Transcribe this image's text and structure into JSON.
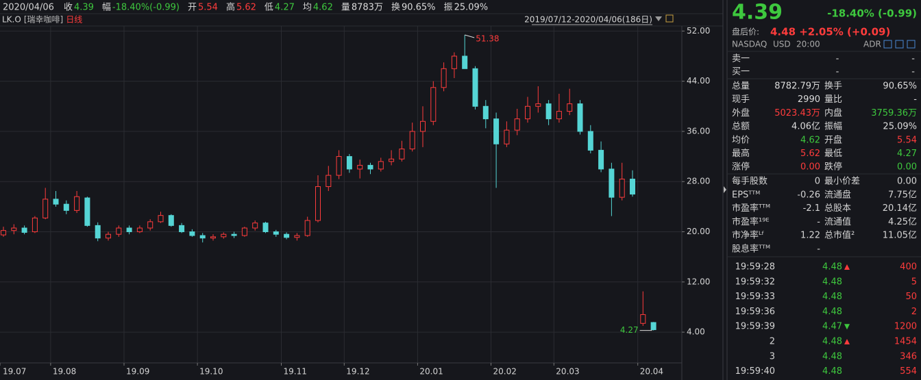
{
  "quote_bar": {
    "date": "2020/04/06",
    "items": [
      {
        "label": "收",
        "value": "4.39",
        "color": "#3ec83e"
      },
      {
        "label": "幅",
        "value": "-18.40%(-0.99)",
        "color": "#3ec83e"
      },
      {
        "label": "开",
        "value": "5.54",
        "color": "#ff3c3c"
      },
      {
        "label": "高",
        "value": "5.62",
        "color": "#ff3c3c"
      },
      {
        "label": "低",
        "value": "4.27",
        "color": "#3ec83e"
      },
      {
        "label": "均",
        "value": "4.62",
        "color": "#3ec83e"
      },
      {
        "label": "量",
        "value": "8783万",
        "color": "#dcdcdc"
      },
      {
        "label": "换",
        "value": "90.65%",
        "color": "#dcdcdc"
      },
      {
        "label": "振",
        "value": "25.09%",
        "color": "#dcdcdc"
      }
    ]
  },
  "chart_header": {
    "symbol": "LK.O",
    "name": "[瑞幸咖啡]",
    "period": "日线",
    "range": "2019/07/12-2020/04/06(186日)"
  },
  "chart": {
    "type": "candlestick",
    "up_color": "#ff3c3c",
    "down_color": "#55d5d5",
    "grid": true,
    "ylim": [
      -0.9,
      52.8
    ],
    "yticks": [
      {
        "value": 4,
        "label": "4.00"
      },
      {
        "value": 12,
        "label": "12.00"
      },
      {
        "value": 20,
        "label": "20.00"
      },
      {
        "value": 28,
        "label": "28.00"
      },
      {
        "value": 36,
        "label": "36.00"
      },
      {
        "value": 44,
        "label": "44.00"
      },
      {
        "value": 52,
        "label": "52.00"
      }
    ],
    "high_annotation": 51.38,
    "low_annotation": 4.27,
    "categories": [
      "19.07",
      null,
      null,
      null,
      null,
      "19.08",
      null,
      null,
      null,
      null,
      null,
      null,
      "19.09",
      null,
      null,
      null,
      null,
      null,
      null,
      "19.10",
      null,
      null,
      null,
      null,
      null,
      null,
      null,
      "19.11",
      null,
      null,
      null,
      null,
      null,
      "19.12",
      null,
      null,
      null,
      null,
      null,
      null,
      "20.01",
      null,
      null,
      null,
      null,
      null,
      null,
      "20.02",
      null,
      null,
      null,
      null,
      null,
      "20.03",
      null,
      null,
      null,
      null,
      null,
      null,
      null,
      "20.04",
      null
    ],
    "ohlc": [
      [
        19.5,
        20.8,
        19.2,
        20.2
      ],
      [
        20.2,
        21.2,
        19.6,
        20.6
      ],
      [
        20.6,
        21,
        19.6,
        19.9
      ],
      [
        20,
        22.5,
        19.8,
        22.2
      ],
      [
        22.2,
        27,
        22,
        25.2
      ],
      [
        25.2,
        26.5,
        24,
        24.4
      ],
      [
        24.4,
        25,
        22.8,
        23.4
      ],
      [
        23.4,
        26.5,
        23,
        25.6
      ],
      [
        25.4,
        25.6,
        20.8,
        21
      ],
      [
        21,
        21.5,
        18.5,
        19
      ],
      [
        19,
        20,
        18.6,
        19.6
      ],
      [
        19.6,
        21,
        19.2,
        20.6
      ],
      [
        20.6,
        21,
        19.6,
        20
      ],
      [
        20,
        21,
        19.8,
        20.6
      ],
      [
        20.6,
        22,
        20.2,
        21.6
      ],
      [
        21.6,
        23.2,
        21.4,
        22.6
      ],
      [
        22.6,
        22.8,
        20.8,
        21
      ],
      [
        21,
        21.4,
        19.8,
        20
      ],
      [
        20,
        20.4,
        19.2,
        19.4
      ],
      [
        19.4,
        19.8,
        18.3,
        19
      ],
      [
        19,
        19.6,
        18.6,
        19.2
      ],
      [
        19.2,
        19.9,
        18.9,
        19.6
      ],
      [
        19.6,
        20,
        19,
        19.4
      ],
      [
        19.4,
        20.8,
        19.2,
        20.6
      ],
      [
        20.6,
        21.8,
        20.2,
        21.4
      ],
      [
        21.4,
        21.6,
        19.8,
        20
      ],
      [
        20,
        20.3,
        19.2,
        19.6
      ],
      [
        19.6,
        19.9,
        18.8,
        19.1
      ],
      [
        19.1,
        19.8,
        18.6,
        19.4
      ],
      [
        19.4,
        22.4,
        19.2,
        21.8
      ],
      [
        21.8,
        29,
        21.5,
        27.2
      ],
      [
        27.2,
        30.5,
        26.5,
        29
      ],
      [
        29,
        33,
        28.4,
        32
      ],
      [
        32,
        32.4,
        29.4,
        30
      ],
      [
        30,
        31.5,
        28.5,
        30.6
      ],
      [
        30.6,
        31,
        29.2,
        30
      ],
      [
        30,
        31.8,
        29.6,
        31.2
      ],
      [
        31.2,
        33,
        30.6,
        31.6
      ],
      [
        31.6,
        34.5,
        31.2,
        33.2
      ],
      [
        33.2,
        37.4,
        32.8,
        36
      ],
      [
        36,
        40,
        33.5,
        37.6
      ],
      [
        37.6,
        44,
        37,
        43
      ],
      [
        43,
        47,
        42.4,
        46
      ],
      [
        46,
        48.6,
        44.5,
        48
      ],
      [
        48,
        51.38,
        46,
        46
      ],
      [
        46,
        46.4,
        39.5,
        40
      ],
      [
        40,
        41,
        36.5,
        38
      ],
      [
        38,
        39,
        27,
        34
      ],
      [
        34,
        37.6,
        33.5,
        36.2
      ],
      [
        36.2,
        39.6,
        35.4,
        38
      ],
      [
        38,
        41.5,
        37.4,
        40
      ],
      [
        40,
        43.2,
        39,
        40.4
      ],
      [
        40.4,
        41,
        37,
        38
      ],
      [
        38,
        42,
        37.4,
        39.2
      ],
      [
        39.2,
        42.8,
        38.6,
        40.4
      ],
      [
        40.4,
        41,
        35.5,
        36
      ],
      [
        36,
        37,
        32.5,
        33
      ],
      [
        33,
        34.4,
        29.5,
        30
      ],
      [
        30,
        31,
        22.5,
        25.5
      ],
      [
        25.5,
        31,
        25,
        28.4
      ],
      [
        28.4,
        29.8,
        25.6,
        26
      ],
      [
        5.4,
        10.5,
        5,
        6.8
      ],
      [
        5.54,
        5.62,
        4.27,
        4.39
      ]
    ]
  },
  "panel": {
    "price": "4.39",
    "change": "-18.40% (-0.99)",
    "after_label": "盘后价:",
    "after_price": "4.48 +2.05% (+0.09)",
    "exchange": "NASDAQ",
    "currency": "USD",
    "time": "20:00",
    "adr": "ADR",
    "book": [
      {
        "label": "卖一",
        "price": "-",
        "volume": "-"
      },
      {
        "label": "买一",
        "price": "-",
        "volume": "-"
      }
    ],
    "stats": [
      {
        "label": "总量",
        "value": "8782.79万",
        "value_color": "#dcdcdc",
        "label2": "换手",
        "value2": "90.65%",
        "value2_color": "#dcdcdc"
      },
      {
        "label": "现手",
        "value": "2990",
        "value_color": "#dcdcdc",
        "label2": "量比",
        "value2": "-",
        "value2_color": "#dcdcdc"
      },
      {
        "label": "外盘",
        "value": "5023.43万",
        "value_color": "#ff3c3c",
        "label2": "内盘",
        "value2": "3759.36万",
        "value2_color": "#3ec83e"
      },
      {
        "label": "总额",
        "value": "4.06亿",
        "value_color": "#dcdcdc",
        "label2": "振幅",
        "value2": "25.09%",
        "value2_color": "#dcdcdc"
      },
      {
        "label": "均价",
        "value": "4.62",
        "value_color": "#3ec83e",
        "label2": "开盘",
        "value2": "5.54",
        "value2_color": "#ff3c3c"
      },
      {
        "label": "最高",
        "value": "5.62",
        "value_color": "#ff3c3c",
        "label2": "最低",
        "value2": "4.27",
        "value2_color": "#3ec83e"
      },
      {
        "label": "涨停",
        "value": "0.00",
        "value_color": "#ff3c3c",
        "label2": "跌停",
        "value2": "0.00",
        "value2_color": "#3ec83e"
      }
    ],
    "fundamentals": [
      {
        "label": "每手股数",
        "value": "0",
        "label2": "最小价差",
        "value2": "0.00"
      },
      {
        "label": "EPSᵀᵀᴹ",
        "value": "-0.26",
        "label2": "流通盘",
        "value2": "7.75亿"
      },
      {
        "label": "市盈率ᵀᵀᴹ",
        "value": "-2.1",
        "label2": "总股本",
        "value2": "20.14亿"
      },
      {
        "label": "市盈率¹⁹ᴱ",
        "value": "-",
        "label2": "流通值",
        "value2": "4.25亿"
      },
      {
        "label": "市净率ᴸᶠ",
        "value": "1.22",
        "label2": "总市值²",
        "value2": "11.05亿"
      },
      {
        "label": "股息率ᵀᵀᴹ",
        "value": "-"
      }
    ],
    "ticks": [
      {
        "time": "19:59:28",
        "price": "4.48",
        "dir": "up",
        "volume": "400"
      },
      {
        "time": "19:59:32",
        "price": "4.48",
        "volume": "5"
      },
      {
        "time": "19:59:33",
        "price": "4.48",
        "volume": "50"
      },
      {
        "time": "19:59:36",
        "price": "4.48",
        "volume": "2"
      },
      {
        "time": "19:59:39",
        "price": "4.47",
        "dir": "down",
        "volume": "1200"
      },
      {
        "time": "2",
        "price": "4.48",
        "dir": "up",
        "volume": "1454"
      },
      {
        "time": "3",
        "price": "4.48",
        "volume": "346"
      },
      {
        "time": "19:59:40",
        "price": "4.48",
        "volume": "554"
      }
    ]
  }
}
